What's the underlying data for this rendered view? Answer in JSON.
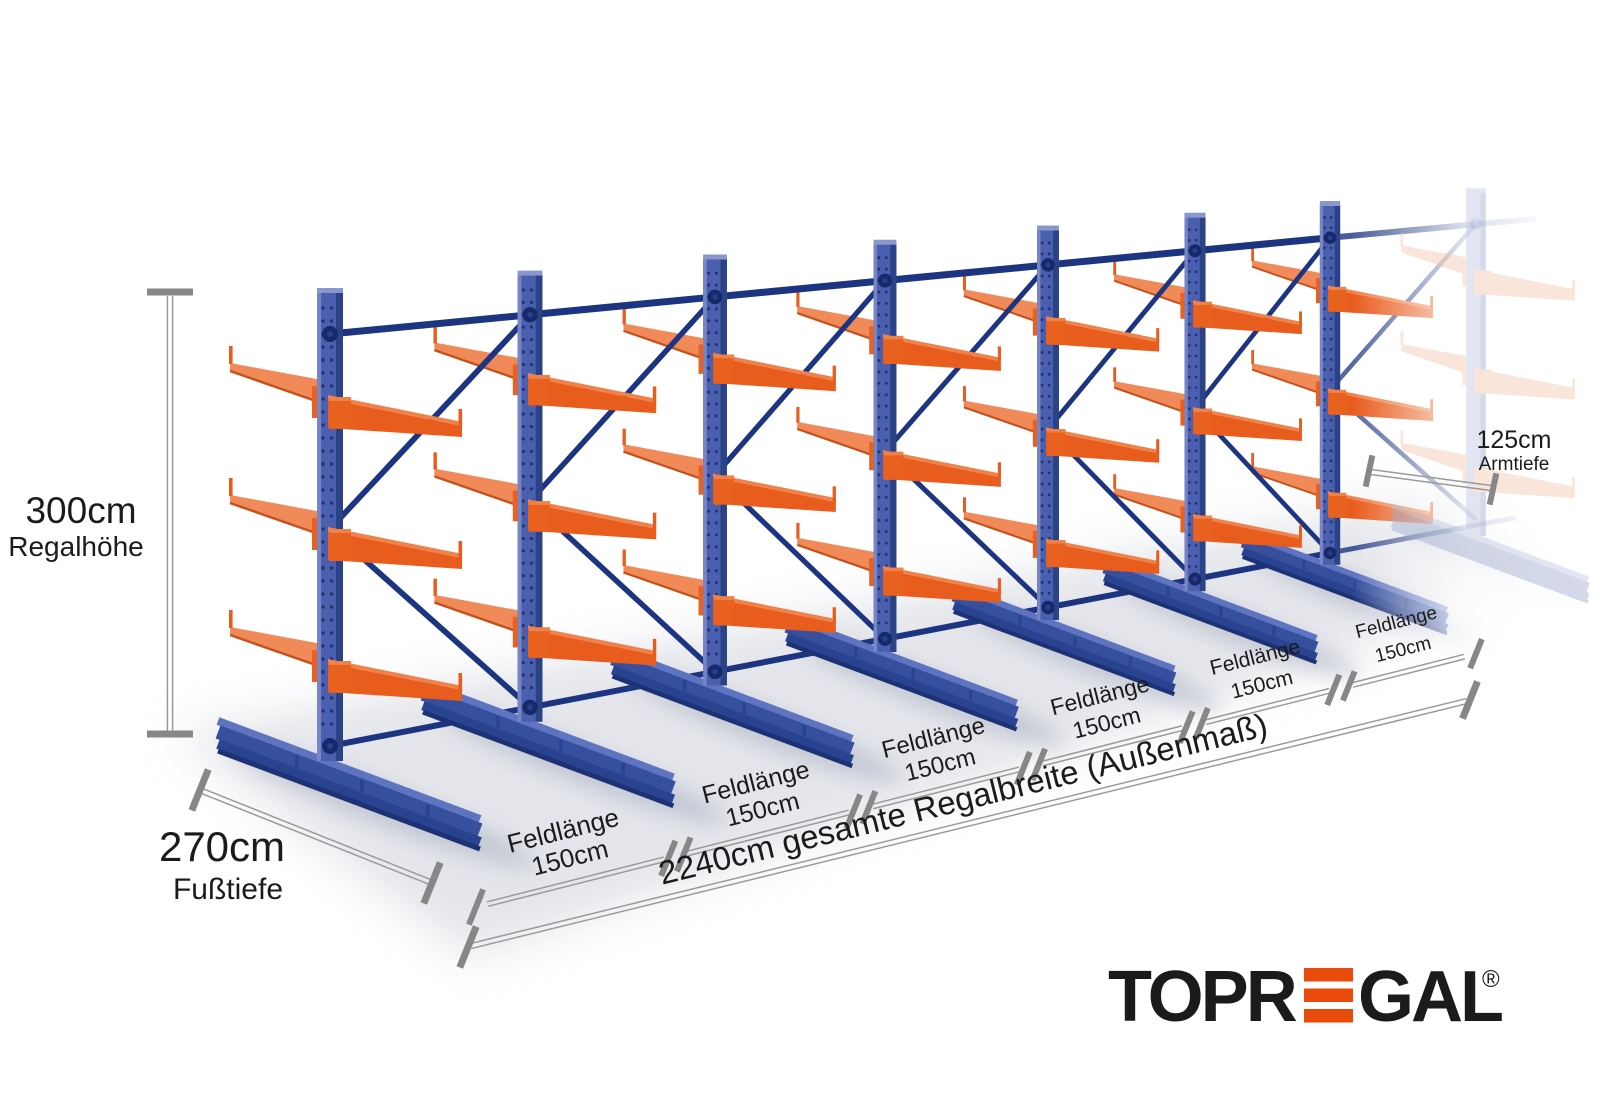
{
  "annotations": {
    "height": {
      "value": "300cm",
      "label": "Regalhöhe"
    },
    "foot_depth": {
      "value": "270cm",
      "label": "Fußtiefe"
    },
    "arm_depth": {
      "value": "125cm",
      "label": "Armtiefe"
    },
    "bays": [
      {
        "label": "Feldlänge",
        "value": "150cm"
      },
      {
        "label": "Feldlänge",
        "value": "150cm"
      },
      {
        "label": "Feldlänge",
        "value": "150cm"
      },
      {
        "label": "Feldlänge",
        "value": "150cm"
      },
      {
        "label": "Feldlänge",
        "value": "150cm"
      },
      {
        "label": "Feldlänge",
        "value": "150cm"
      }
    ],
    "total_width": {
      "text": "2240cm gesamte Regalbreite  (Außenmaß)"
    }
  },
  "logo": {
    "word_start": "TOPR",
    "word_end": "GAL",
    "registered_mark": "®"
  },
  "colors": {
    "column_face": "#4a5fae",
    "column_light": "#7d89c6",
    "column_side": "#2b4287",
    "column_top": "#8a97cc",
    "perforation": "#1b2c6b",
    "beam": "#1d3581",
    "knob": "#15296b",
    "arm_side": "#e85c1e",
    "arm_top": "#f08249",
    "arm_back": "#f08a58",
    "arm_dark": "#c7511b",
    "bracket": "#e8611f",
    "foot_top": "#5f74c0",
    "foot_web": "#36509e",
    "foot_flange": "#2a4390",
    "foot_edge": "#1d3175",
    "ghost_face": "#bac5e1",
    "ghost_side": "#9aa8cc",
    "ghost_arm": "#f5c3a8",
    "dim_line": "#9a9a9a",
    "dim_cap": "#878787",
    "text": "#1b1b1b",
    "logo_blue": "#16377e",
    "logo_orange": "#e84b0c",
    "shadow": "#c9ccd6",
    "foot_shadow": "#a3a9bc"
  }
}
